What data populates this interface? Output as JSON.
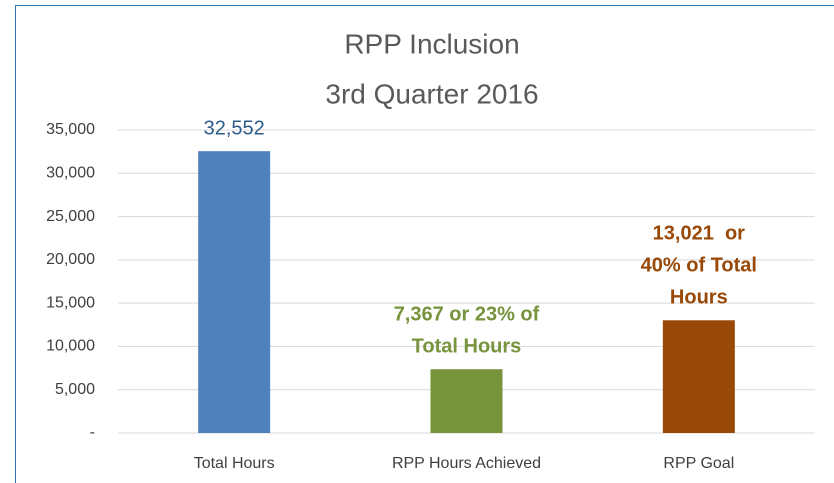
{
  "chart_data": {
    "type": "bar",
    "title": [
      "RPP Inclusion",
      "3rd Quarter 2016"
    ],
    "categories": [
      "Total Hours",
      "RPP Hours Achieved",
      "RPP Goal"
    ],
    "values": [
      32552,
      7367,
      13021
    ],
    "value_labels": [
      [
        "32,552"
      ],
      [
        "7,367 or 23% of",
        "Total Hours"
      ],
      [
        "13,021  or",
        "40% of Total",
        "Hours"
      ]
    ],
    "colors": [
      "#4f81bd",
      "#77933c",
      "#984807"
    ],
    "ylim": [
      0,
      35000
    ],
    "yticks": [
      {
        "value": 0,
        "label": "-"
      },
      {
        "value": 5000,
        "label": "5,000"
      },
      {
        "value": 10000,
        "label": "10,000"
      },
      {
        "value": 15000,
        "label": "15,000"
      },
      {
        "value": 20000,
        "label": "20,000"
      },
      {
        "value": 25000,
        "label": "25,000"
      },
      {
        "value": 30000,
        "label": "30,000"
      },
      {
        "value": 35000,
        "label": "35,000"
      }
    ],
    "grid": true
  }
}
